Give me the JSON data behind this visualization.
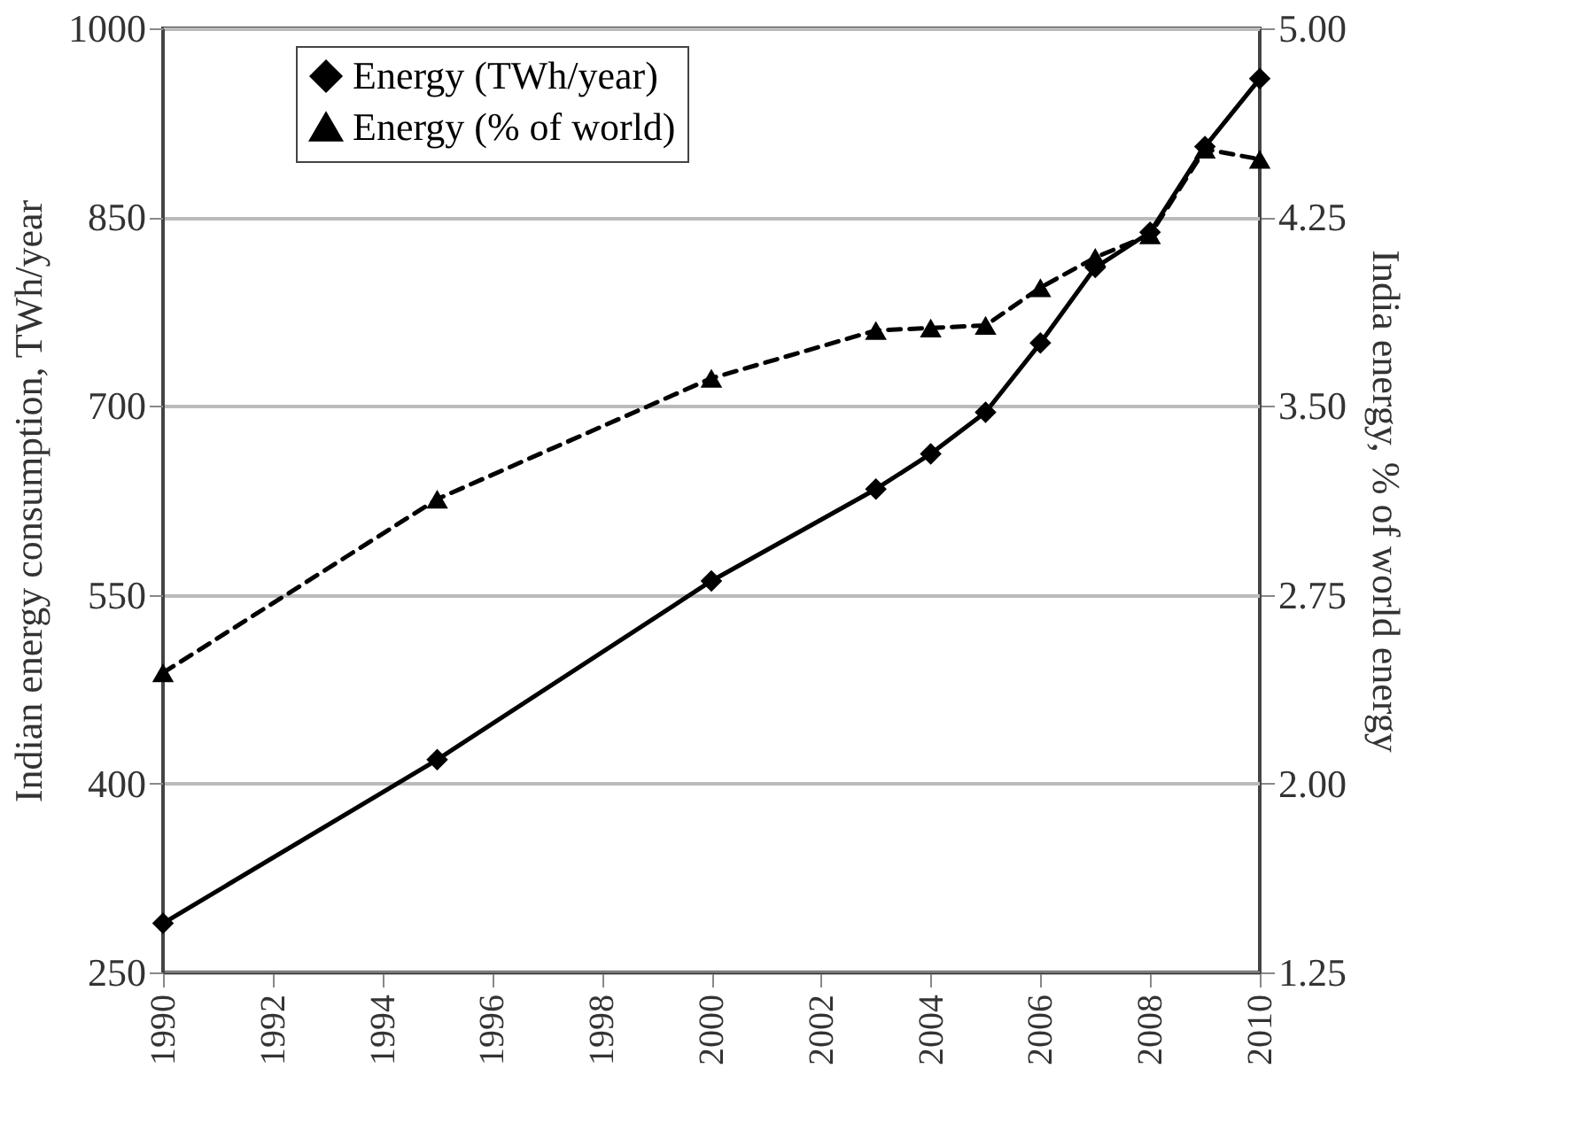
{
  "chart_data": {
    "type": "line",
    "ylabel": "Indian energy consumption, TWh/year",
    "y2label": "India energy, % of world energy",
    "x": [
      1990,
      1995,
      2000,
      2003,
      2004,
      2005,
      2006,
      2007,
      2008,
      2009,
      2010
    ],
    "series": [
      {
        "name": "Energy (TWh/year)",
        "color": "#000000",
        "marker": "diamond",
        "line_style": "solid",
        "values": [
          289,
          419,
          561,
          634,
          662,
          695,
          750,
          810,
          838,
          906,
          960
        ]
      },
      {
        "name": "Energy (% of world)",
        "color": "#000000",
        "marker": "triangle",
        "line_style": "dashed",
        "axis": "y2",
        "values": [
          2.44,
          3.13,
          3.61,
          3.8,
          3.81,
          3.82,
          3.97,
          4.09,
          4.18,
          4.52,
          4.48
        ]
      }
    ],
    "xlim": [
      1990,
      2010
    ],
    "xticks": [
      1990,
      1992,
      1994,
      1996,
      1998,
      2000,
      2002,
      2004,
      2006,
      2008,
      2010
    ],
    "ylim": [
      250,
      1000
    ],
    "yticks": [
      250,
      400,
      550,
      700,
      850,
      1000
    ],
    "y2lim": [
      1.25,
      5.0
    ],
    "y2ticks": [
      {
        "value": 1.25,
        "label": "1.25"
      },
      {
        "value": 2.0,
        "label": "2.00"
      },
      {
        "value": 2.75,
        "label": "2.75"
      },
      {
        "value": 3.5,
        "label": "3.50"
      },
      {
        "value": 4.25,
        "label": "4.25"
      },
      {
        "value": 5.0,
        "label": "5.00"
      }
    ],
    "grid": "y",
    "legend": "top left"
  }
}
